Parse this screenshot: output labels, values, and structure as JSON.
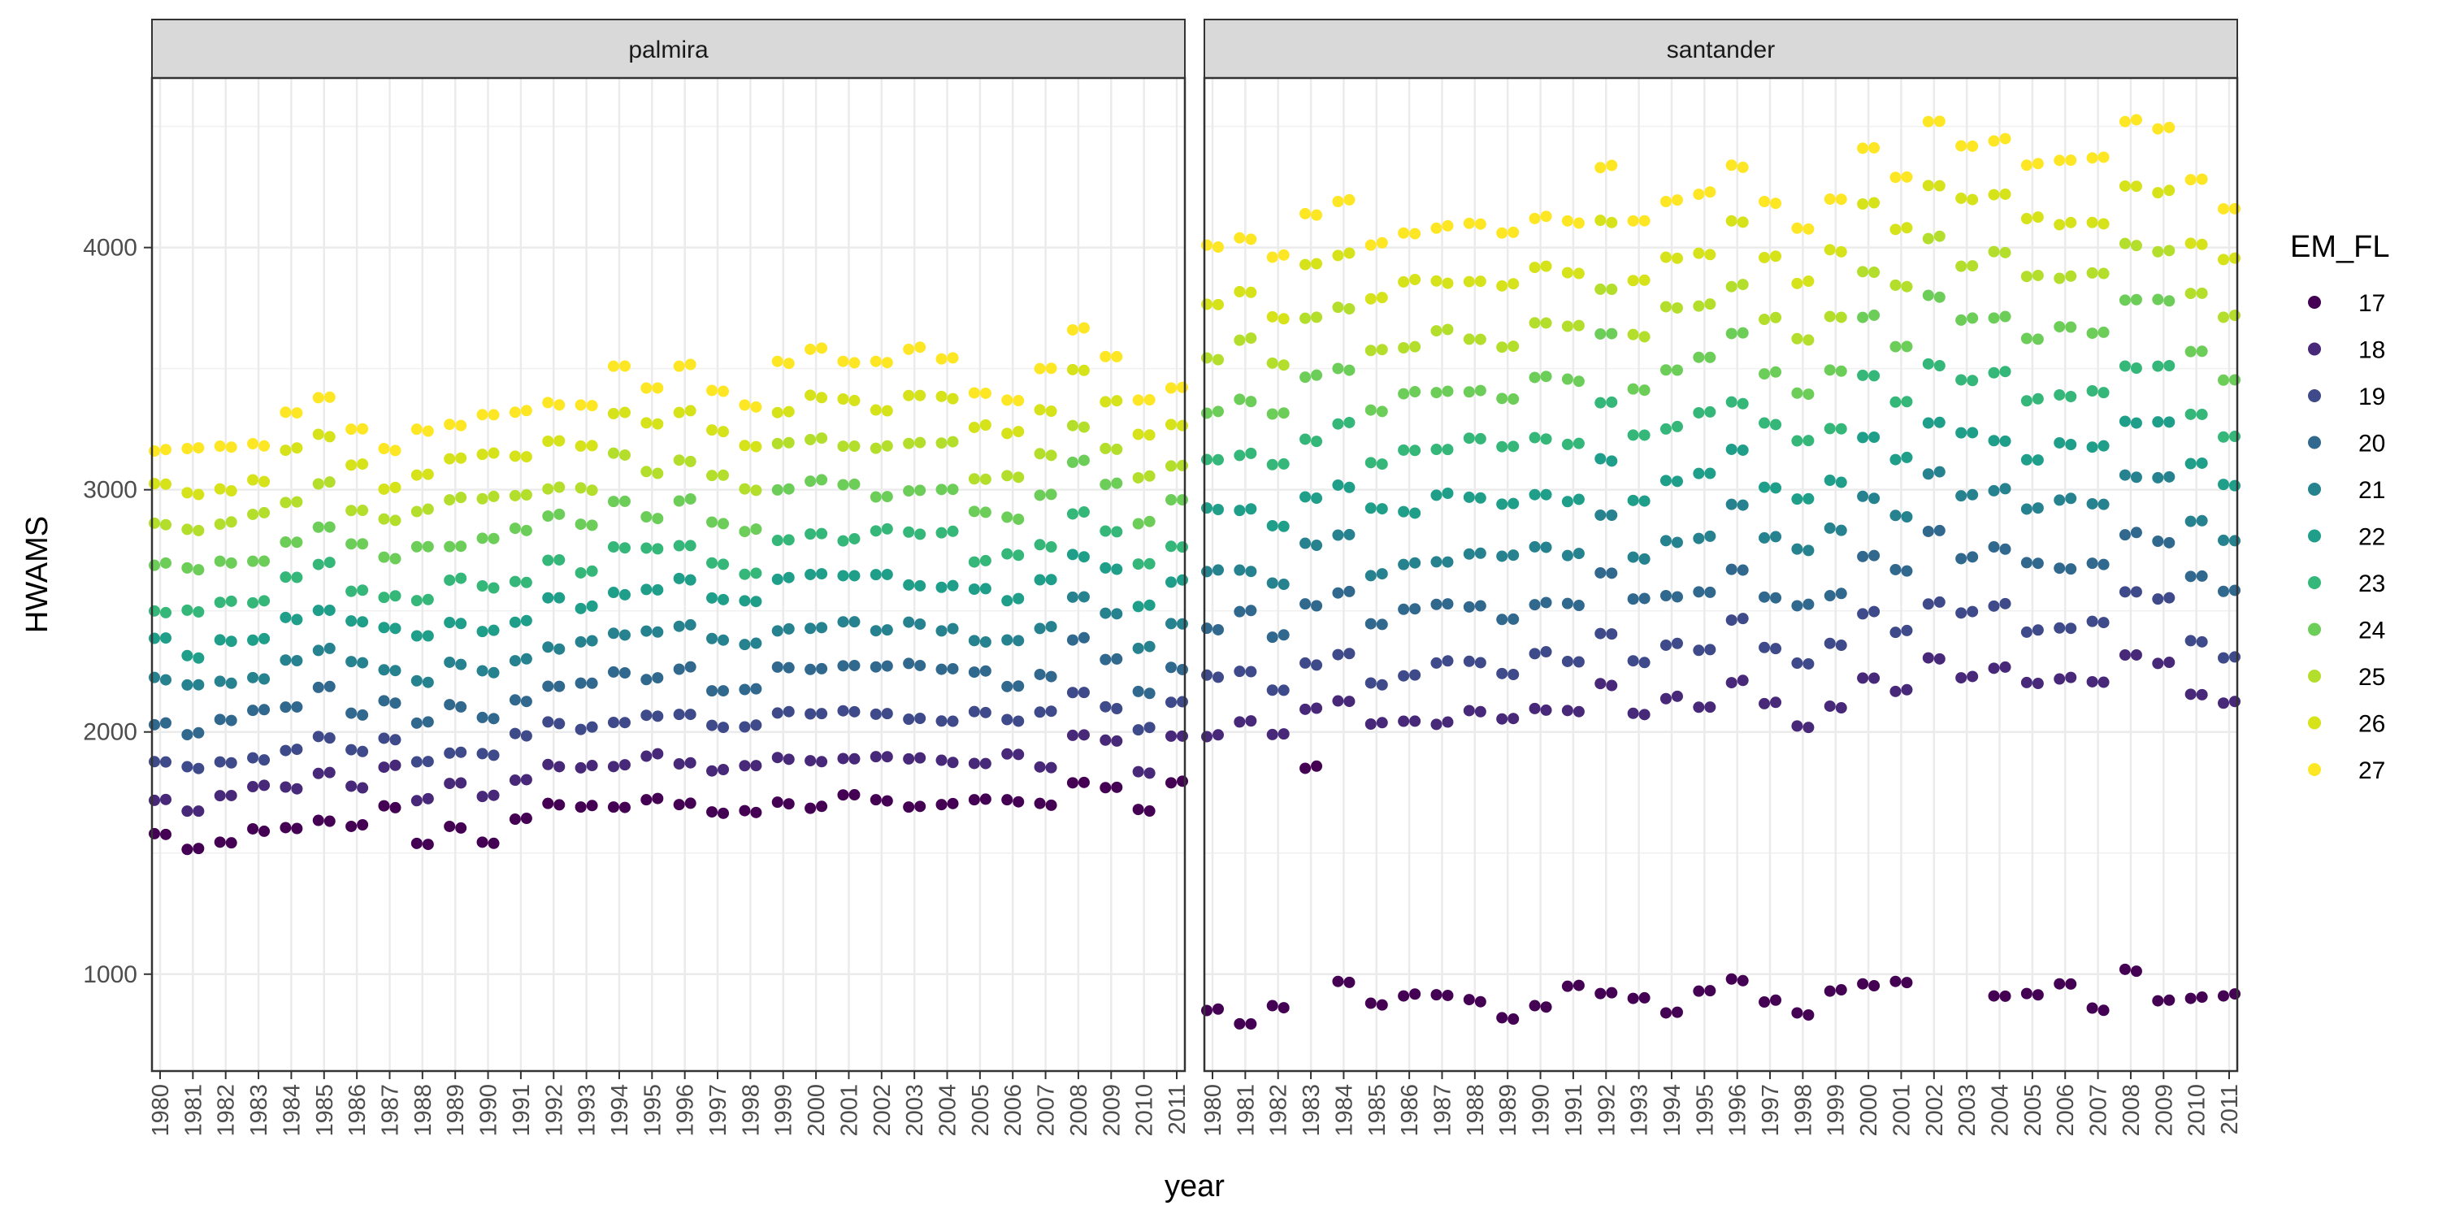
{
  "chart_data": {
    "type": "scatter",
    "facet_var": "site",
    "facets": [
      "palmira",
      "santander"
    ],
    "xlabel": "year",
    "ylabel": "HWAMS",
    "y_ticks": [
      1000,
      2000,
      3000,
      4000
    ],
    "ylim": [
      600,
      4700
    ],
    "years": [
      1980,
      1981,
      1982,
      1983,
      1984,
      1985,
      1986,
      1987,
      1988,
      1989,
      1990,
      1991,
      1992,
      1993,
      1994,
      1995,
      1996,
      1997,
      1998,
      1999,
      2000,
      2001,
      2002,
      2003,
      2004,
      2005,
      2006,
      2007,
      2008,
      2009,
      2010,
      2011
    ],
    "legend": {
      "title": "EM_FL",
      "levels": [
        17,
        18,
        19,
        20,
        21,
        22,
        23,
        24,
        25,
        26,
        27
      ],
      "colors": [
        "#440154",
        "#482878",
        "#3E4A89",
        "#31688E",
        "#26828E",
        "#1F9E89",
        "#35B779",
        "#6DCD59",
        "#B4DE2C",
        "#D6E21A",
        "#FDE725"
      ],
      "position": "right"
    },
    "series": {
      "palmira": {
        "17": [
          1580,
          1515,
          1545,
          1600,
          1605,
          1635,
          1610,
          1695,
          1540,
          1610,
          1545,
          1640,
          1705,
          1690,
          1690,
          1720,
          1700,
          1670,
          1675,
          1710,
          1685,
          1740,
          1720,
          1690,
          1700,
          1720,
          1720,
          1705,
          1790,
          1770,
          1680,
          1790
        ],
        "27": [
          3160,
          3170,
          3180,
          3190,
          3320,
          3380,
          3250,
          3170,
          3250,
          3270,
          3310,
          3320,
          3360,
          3350,
          3510,
          3420,
          3510,
          3410,
          3350,
          3530,
          3580,
          3530,
          3530,
          3580,
          3540,
          3400,
          3370,
          3500,
          3660,
          3550,
          3370,
          3420
        ]
      },
      "santander": {
        "17": [
          850,
          795,
          870,
          1850,
          970,
          880,
          910,
          915,
          895,
          820,
          870,
          950,
          920,
          900,
          840,
          930,
          980,
          885,
          840,
          930,
          960,
          970,
          null,
          null,
          910,
          920,
          960,
          860,
          1020,
          890,
          900,
          910
        ],
        "27": [
          4010,
          4040,
          3960,
          4140,
          4190,
          4010,
          4060,
          4080,
          4100,
          4060,
          4120,
          4110,
          4330,
          4110,
          4190,
          4220,
          4340,
          4190,
          4080,
          4200,
          4410,
          4290,
          4520,
          4420,
          4440,
          4340,
          4360,
          4370,
          4520,
          4490,
          4280,
          4160
        ]
      }
    }
  }
}
